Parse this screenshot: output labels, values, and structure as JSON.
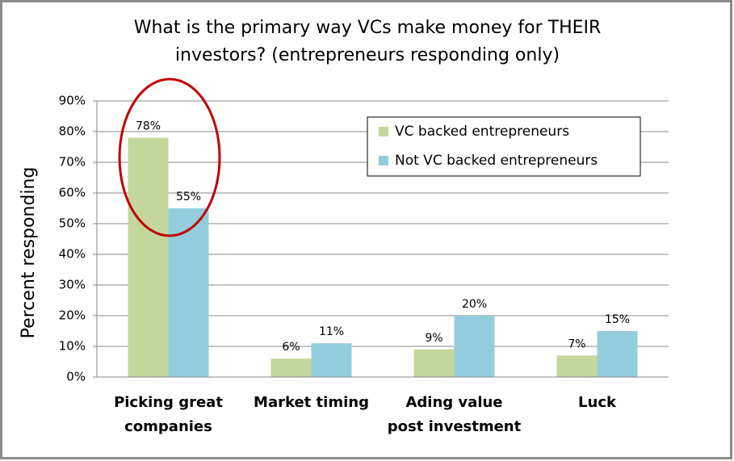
{
  "chart_data": {
    "type": "bar",
    "title": "What is the primary way VCs make money for THEIR investors? (entrepreneurs responding only)",
    "y_label": "Percent responding",
    "categories": [
      "Picking great companies",
      "Market timing",
      "Ading value post investment",
      "Luck"
    ],
    "series": [
      {
        "name": "VC backed entrepreneurs",
        "color": "#c3d69b",
        "values": [
          78,
          6,
          9,
          7
        ],
        "value_labels": [
          "78%",
          "6%",
          "9%",
          "7%"
        ]
      },
      {
        "name": "Not VC backed entrepreneurs",
        "color": "#93cddd",
        "values": [
          55,
          11,
          20,
          15
        ],
        "value_labels": [
          "55%",
          "11%",
          "20%",
          "15%"
        ]
      }
    ],
    "ylim": [
      0,
      90
    ],
    "yticks": [
      {
        "value": 0,
        "label": "0%"
      },
      {
        "value": 10,
        "label": "10%"
      },
      {
        "value": 20,
        "label": "20%"
      },
      {
        "value": 30,
        "label": "30%"
      },
      {
        "value": 40,
        "label": "40%"
      },
      {
        "value": 50,
        "label": "50%"
      },
      {
        "value": 60,
        "label": "60%"
      },
      {
        "value": 70,
        "label": "70%"
      },
      {
        "value": 80,
        "label": "80%"
      },
      {
        "value": 90,
        "label": "90%"
      }
    ],
    "grid": true,
    "legend": "upper right"
  }
}
